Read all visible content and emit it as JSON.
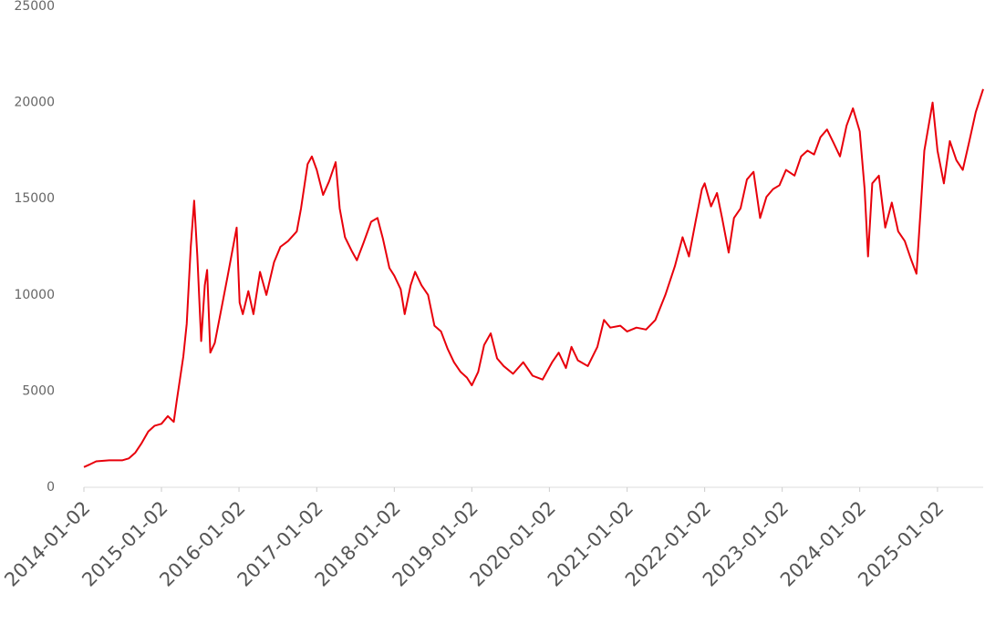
{
  "chart_data": {
    "type": "line",
    "x": [
      "2014-01-02",
      "2014-02-01",
      "2014-03-01",
      "2014-05-01",
      "2014-07-01",
      "2014-08-01",
      "2014-09-01",
      "2014-10-01",
      "2014-11-01",
      "2014-12-01",
      "2015-01-02",
      "2015-02-01",
      "2015-03-01",
      "2015-03-15",
      "2015-04-15",
      "2015-05-01",
      "2015-05-20",
      "2015-06-05",
      "2015-06-20",
      "2015-07-08",
      "2015-07-25",
      "2015-08-05",
      "2015-08-20",
      "2015-09-10",
      "2015-10-15",
      "2015-11-10",
      "2015-12-22",
      "2016-01-05",
      "2016-01-20",
      "2016-02-15",
      "2016-03-10",
      "2016-04-10",
      "2016-05-10",
      "2016-06-15",
      "2016-07-15",
      "2016-08-20",
      "2016-09-30",
      "2016-10-20",
      "2016-11-20",
      "2016-12-10",
      "2017-01-02",
      "2017-02-01",
      "2017-03-01",
      "2017-04-01",
      "2017-04-20",
      "2017-05-15",
      "2017-06-15",
      "2017-07-10",
      "2017-08-10",
      "2017-09-15",
      "2017-10-15",
      "2017-11-10",
      "2017-12-10",
      "2018-01-02",
      "2018-02-01",
      "2018-02-20",
      "2018-03-20",
      "2018-04-10",
      "2018-05-10",
      "2018-06-10",
      "2018-07-10",
      "2018-08-10",
      "2018-09-10",
      "2018-10-10",
      "2018-11-10",
      "2018-12-10",
      "2019-01-02",
      "2019-02-01",
      "2019-03-01",
      "2019-04-01",
      "2019-05-01",
      "2019-06-01",
      "2019-07-15",
      "2019-09-01",
      "2019-10-15",
      "2019-12-01",
      "2020-01-15",
      "2020-02-15",
      "2020-03-20",
      "2020-04-15",
      "2020-05-15",
      "2020-07-01",
      "2020-08-15",
      "2020-09-15",
      "2020-10-15",
      "2020-12-01",
      "2021-01-02",
      "2021-02-15",
      "2021-04-01",
      "2021-05-15",
      "2021-07-01",
      "2021-08-15",
      "2021-09-20",
      "2021-10-20",
      "2021-11-20",
      "2021-12-20",
      "2022-01-02",
      "2022-02-01",
      "2022-03-01",
      "2022-03-25",
      "2022-04-25",
      "2022-05-20",
      "2022-06-20",
      "2022-07-20",
      "2022-08-20",
      "2022-09-20",
      "2022-10-20",
      "2022-11-20",
      "2022-12-20",
      "2023-01-20",
      "2023-03-01",
      "2023-04-01",
      "2023-05-01",
      "2023-06-01",
      "2023-07-01",
      "2023-08-01",
      "2023-09-01",
      "2023-10-01",
      "2023-11-01",
      "2023-12-01",
      "2024-01-02",
      "2024-01-25",
      "2024-02-10",
      "2024-03-01",
      "2024-04-01",
      "2024-05-01",
      "2024-06-01",
      "2024-07-01",
      "2024-08-01",
      "2024-09-01",
      "2024-09-25",
      "2024-10-15",
      "2024-11-01",
      "2024-12-10",
      "2025-01-02",
      "2025-02-01",
      "2025-03-01",
      "2025-04-01",
      "2025-05-01",
      "2025-06-01",
      "2025-07-01",
      "2025-08-05"
    ],
    "values": [
      1050,
      1200,
      1350,
      1400,
      1400,
      1500,
      1800,
      2300,
      2900,
      3200,
      3300,
      3700,
      3400,
      4500,
      6800,
      8500,
      12500,
      14900,
      12000,
      7600,
      10500,
      11300,
      7000,
      7500,
      9500,
      11000,
      13500,
      9600,
      9000,
      10200,
      9000,
      11200,
      10000,
      11700,
      12500,
      12800,
      13300,
      14500,
      16800,
      17200,
      16500,
      15200,
      15900,
      16900,
      14500,
      13000,
      12300,
      11800,
      12700,
      13800,
      14000,
      12900,
      11400,
      11000,
      10300,
      9000,
      10500,
      11200,
      10500,
      10000,
      8400,
      8100,
      7200,
      6500,
      6000,
      5700,
      5300,
      6000,
      7400,
      8000,
      6700,
      6300,
      5900,
      6500,
      5800,
      5600,
      6500,
      7000,
      6200,
      7300,
      6600,
      6300,
      7300,
      8700,
      8300,
      8400,
      8100,
      8300,
      8200,
      8700,
      10000,
      11500,
      13000,
      12000,
      13800,
      15500,
      15800,
      14600,
      15300,
      14000,
      12200,
      14000,
      14500,
      16000,
      16400,
      14000,
      15100,
      15500,
      15700,
      16500,
      16200,
      17200,
      17500,
      17300,
      18200,
      18600,
      17900,
      17200,
      18800,
      19700,
      18500,
      15500,
      12000,
      15800,
      16200,
      13500,
      14800,
      13300,
      12800,
      11800,
      11100,
      14500,
      17500,
      20000,
      17500,
      15800,
      18000,
      17000,
      16500,
      18000,
      19500,
      20700
    ],
    "color": "#e8000b",
    "xlim": [
      "2014-01-02",
      "2025-08-05"
    ],
    "xticks": [
      "2014-01-02",
      "2015-01-02",
      "2016-01-02",
      "2017-01-02",
      "2018-01-02",
      "2019-01-02",
      "2020-01-02",
      "2021-01-02",
      "2022-01-02",
      "2023-01-02",
      "2024-01-02",
      "2025-01-02"
    ],
    "ylim": [
      0,
      25000
    ],
    "yticks": [
      0,
      5000,
      10000,
      15000,
      20000,
      25000
    ]
  }
}
